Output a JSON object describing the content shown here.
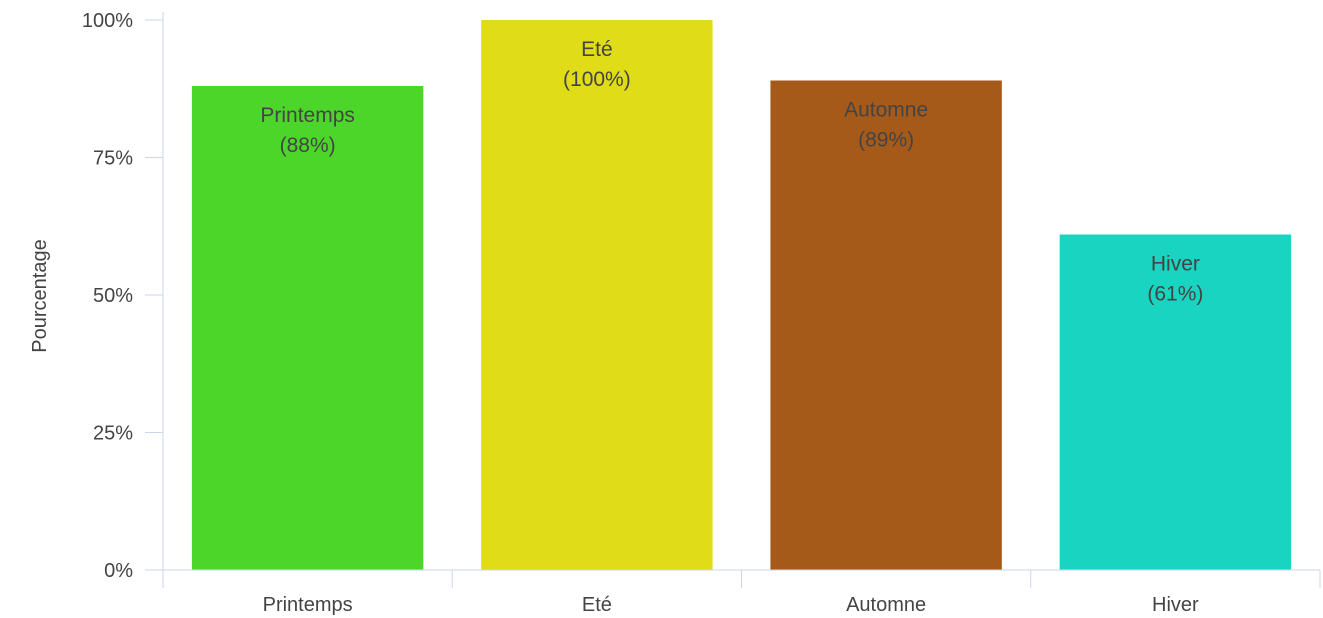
{
  "chart_data": {
    "type": "bar",
    "categories": [
      "Printemps",
      "Eté",
      "Automne",
      "Hiver"
    ],
    "values": [
      88,
      100,
      89,
      61
    ],
    "data_labels": [
      "(88%)",
      "(100%)",
      "(89%)",
      "(61%)"
    ],
    "colors": [
      "#4cd62a",
      "#e0dc18",
      "#a55a1a",
      "#18d4c0"
    ],
    "ylabel": "Pourcentage",
    "xlabel": "",
    "ylim": [
      0,
      100
    ],
    "yticks": [
      "0%",
      "25%",
      "50%",
      "75%",
      "100%"
    ],
    "ytick_values": [
      0,
      25,
      50,
      75,
      100
    ],
    "grid": false,
    "legend": "none"
  }
}
